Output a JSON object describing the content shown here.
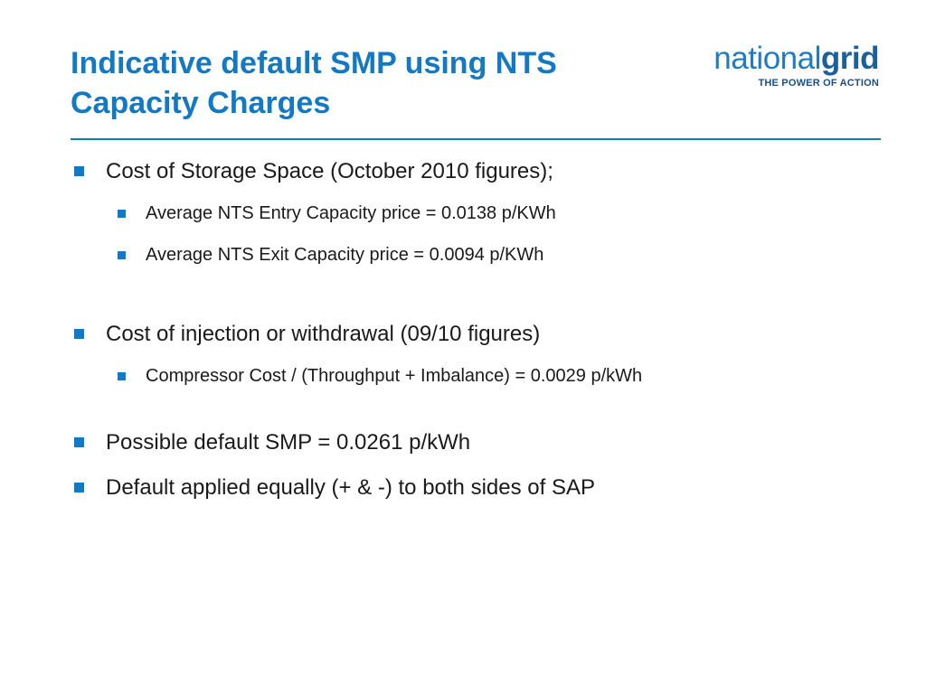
{
  "slide": {
    "title_line1": "Indicative default SMP using NTS",
    "title_line2": "Capacity Charges"
  },
  "logo": {
    "word_light": "national",
    "word_bold": "grid",
    "tagline": "THE POWER OF ACTION"
  },
  "colors": {
    "accent": "#1479C5",
    "text": "#1a1a1a"
  },
  "bullets": [
    {
      "text": "Cost of Storage Space (October 2010 figures);",
      "children": [
        "Average NTS Entry Capacity price = 0.0138 p/KWh",
        "Average NTS Exit Capacity price = 0.0094 p/KWh"
      ]
    },
    {
      "text": "Cost of injection or withdrawal (09/10 figures)",
      "children": [
        "Compressor Cost / (Throughput + Imbalance) = 0.0029 p/kWh"
      ]
    },
    {
      "text": "Possible default SMP = 0.0261 p/kWh",
      "children": []
    },
    {
      "text": "Default applied equally (+ & -) to both sides of SAP",
      "children": []
    }
  ]
}
